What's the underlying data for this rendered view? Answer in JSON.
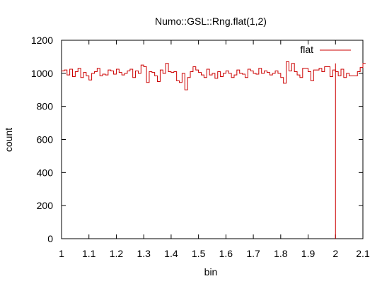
{
  "chart_data": {
    "type": "line",
    "title": "Numo::GSL::Rng.flat(1,2)",
    "xlabel": "bin",
    "ylabel": "count",
    "xlim": [
      1,
      2.1
    ],
    "ylim": [
      0,
      1200
    ],
    "x_ticks": [
      "1",
      "1.1",
      "1.2",
      "1.3",
      "1.4",
      "1.5",
      "1.6",
      "1.7",
      "1.8",
      "1.9",
      "2",
      "2.1"
    ],
    "y_ticks": [
      "0",
      "200",
      "400",
      "600",
      "800",
      "1000",
      "1200"
    ],
    "grid": false,
    "legend_position": "top-right",
    "line_color": "#cc0000",
    "series": [
      {
        "name": "flat",
        "style": "steps",
        "bin_start": 1.0,
        "bin_width": 0.01,
        "values": [
          1015,
          1020,
          990,
          1025,
          980,
          1010,
          1030,
          975,
          1005,
          985,
          960,
          1000,
          1010,
          1030,
          985,
          995,
          990,
          1020,
          1015,
          995,
          1025,
          1005,
          990,
          1000,
          1015,
          1025,
          975,
          1015,
          1000,
          1050,
          1040,
          945,
          1010,
          1005,
          985,
          950,
          1020,
          1000,
          1060,
          1010,
          1005,
          1010,
          955,
          945,
          1000,
          900,
          975,
          1010,
          1040,
          1020,
          1005,
          990,
          975,
          1025,
          990,
          1000,
          970,
          1010,
          980,
          1000,
          1015,
          1000,
          975,
          990,
          1020,
          1000,
          995,
          975,
          1025,
          1015,
          1000,
          995,
          1030,
          1000,
          1015,
          1005,
          990,
          1000,
          1015,
          1000,
          975,
          940,
          1070,
          1015,
          1060,
          1010,
          990,
          975,
          1030,
          1030,
          1010,
          955,
          1020,
          1020,
          1030,
          1010,
          1040,
          1040,
          980,
          1020,
          1010,
          985,
          1025,
          975,
          1000,
          985,
          985,
          985,
          1010,
          1035,
          1060
        ]
      }
    ],
    "drop_line_x": 2.0
  }
}
